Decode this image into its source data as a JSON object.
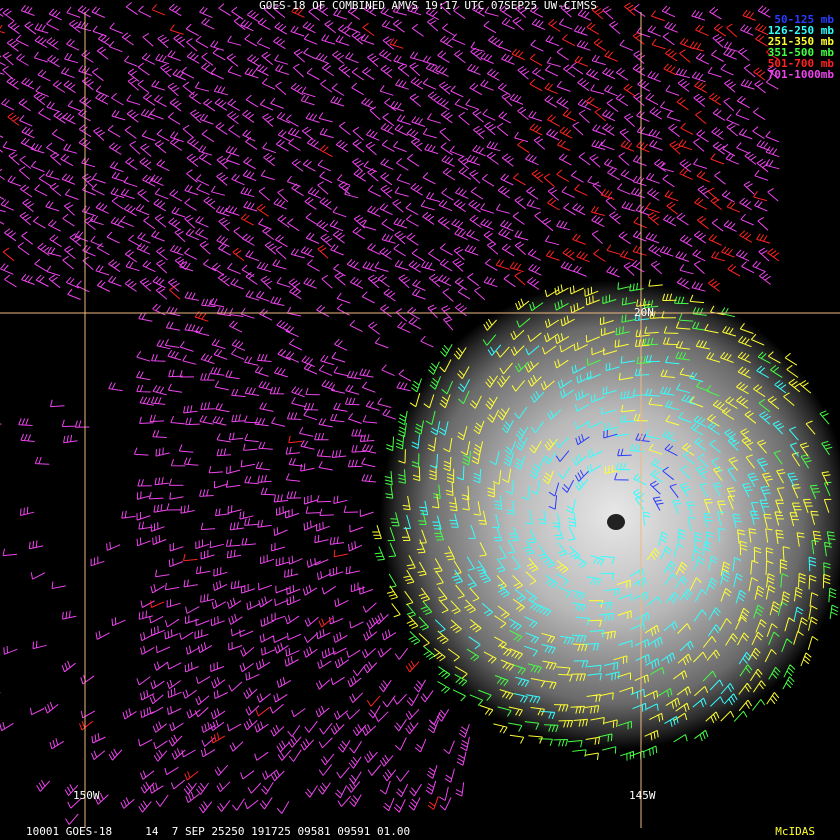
{
  "header": {
    "title": "GOES-18 OF COMBINED AMVS 19:17 UTC 07SEP25 UW-CIMSS"
  },
  "legend": [
    {
      "label": "50-125 mb",
      "color": "#2a3cff"
    },
    {
      "label": "126-250 mb",
      "color": "#33ffff"
    },
    {
      "label": "251-350 mb",
      "color": "#ffff33"
    },
    {
      "label": "351-500 mb",
      "color": "#44ff44"
    },
    {
      "label": "501-700 mb",
      "color": "#ff2222"
    },
    {
      "label": "701-1000mb",
      "color": "#ee44ee"
    }
  ],
  "labels": {
    "lat": "20N",
    "lon_west": "150W",
    "lon_east": "145W"
  },
  "footer": {
    "info": "10001 GOES-18     14  7 SEP 25250 191725 09581 09591 01.00",
    "brand": "McIDAS"
  }
}
